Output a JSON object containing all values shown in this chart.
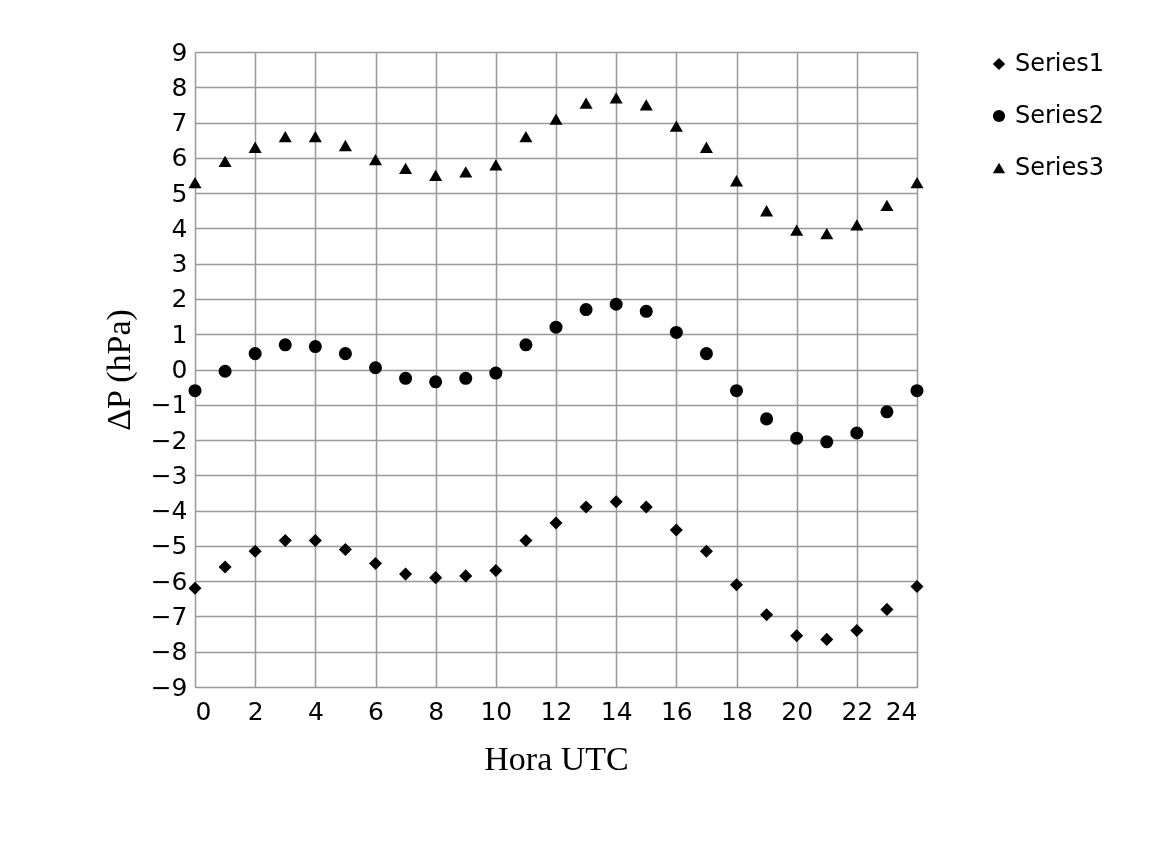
{
  "chart_data": {
    "type": "scatter",
    "xlabel": "Hora UTC",
    "ylabel": "ΔP (hPa)",
    "x": [
      0,
      1,
      2,
      3,
      4,
      5,
      6,
      7,
      8,
      9,
      10,
      11,
      12,
      13,
      14,
      15,
      16,
      17,
      18,
      19,
      20,
      21,
      22,
      23,
      24
    ],
    "series": [
      {
        "name": "Series1",
        "color": "#000000",
        "marker": "diamond",
        "values": [
          -6.2,
          -5.6,
          -5.15,
          -4.85,
          -4.85,
          -5.1,
          -5.5,
          -5.8,
          -5.9,
          -5.85,
          -5.7,
          -4.85,
          -4.35,
          -3.9,
          -3.75,
          -3.9,
          -4.55,
          -5.15,
          -6.1,
          -6.95,
          -7.55,
          -7.65,
          -7.4,
          -6.8,
          -6.15
        ]
      },
      {
        "name": "Series2",
        "color": "#000000",
        "marker": "circle",
        "values": [
          -0.6,
          -0.05,
          0.45,
          0.7,
          0.65,
          0.45,
          0.05,
          -0.25,
          -0.35,
          -0.25,
          -0.1,
          0.7,
          1.2,
          1.7,
          1.85,
          1.65,
          1.05,
          0.45,
          -0.6,
          -1.4,
          -1.95,
          -2.05,
          -1.8,
          -1.2,
          -0.6
        ]
      },
      {
        "name": "Series3",
        "color": "#000000",
        "marker": "triangle",
        "values": [
          5.3,
          5.9,
          6.3,
          6.6,
          6.6,
          6.35,
          5.95,
          5.7,
          5.5,
          5.6,
          5.8,
          6.6,
          7.1,
          7.55,
          7.7,
          7.5,
          6.9,
          6.3,
          5.35,
          4.5,
          3.95,
          3.85,
          4.1,
          4.65,
          5.3
        ]
      }
    ],
    "xlim": [
      0,
      24
    ],
    "xticks": [
      0,
      2,
      4,
      6,
      8,
      10,
      12,
      14,
      16,
      18,
      20,
      22,
      24
    ],
    "ylim": [
      -9,
      9
    ],
    "yticks": [
      -9,
      -8,
      -7,
      -6,
      -5,
      -4,
      -3,
      -2,
      -1,
      0,
      1,
      2,
      3,
      4,
      5,
      6,
      7,
      8,
      9
    ],
    "grid": true,
    "legend": "right"
  }
}
